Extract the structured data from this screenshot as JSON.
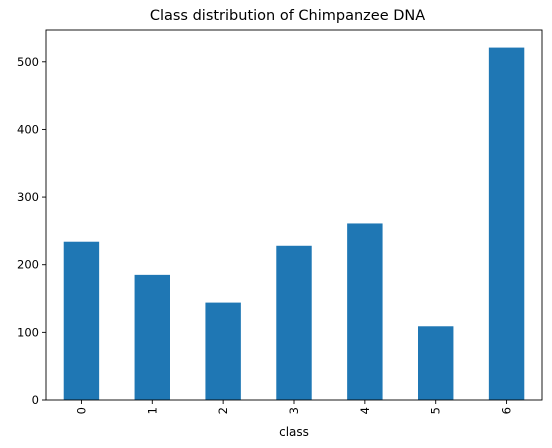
{
  "chart_data": {
    "type": "bar",
    "title": "Class distribution of Chimpanzee DNA",
    "xlabel": "class",
    "ylabel": "",
    "categories": [
      "0",
      "1",
      "2",
      "3",
      "4",
      "5",
      "6"
    ],
    "values": [
      234,
      185,
      144,
      228,
      261,
      109,
      521
    ],
    "ylim": [
      0,
      547
    ],
    "yticks": [
      0,
      100,
      200,
      300,
      400,
      500
    ],
    "grid": false,
    "bar_color": "#1f77b4",
    "tick_label_rotation": "vertical"
  }
}
